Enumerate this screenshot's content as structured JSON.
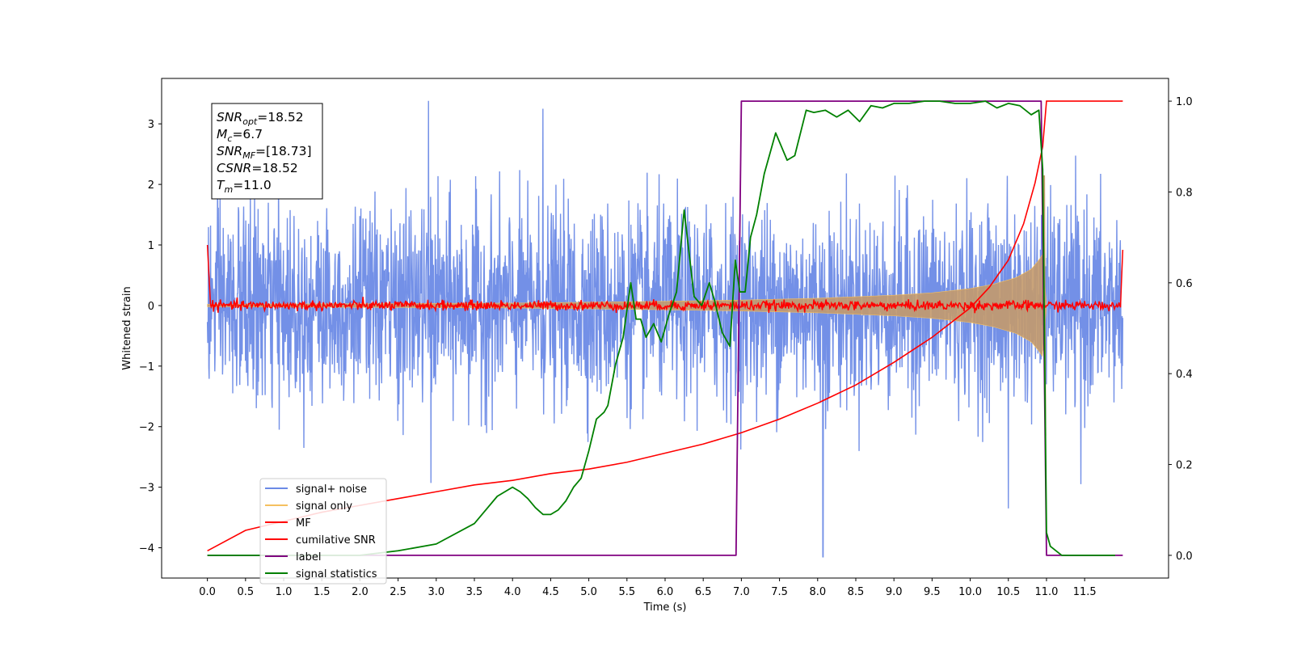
{
  "chart_data": {
    "type": "line",
    "xlabel": "Time (s)",
    "ylabel_left": "Whitened strain",
    "ylabel_right": "",
    "xlim": [
      -0.6,
      12.6
    ],
    "ylim_left": [
      -4.5,
      3.75
    ],
    "ylim_right": [
      -0.05,
      1.05
    ],
    "x_ticks": [
      0.0,
      0.5,
      1.0,
      1.5,
      2.0,
      2.5,
      3.0,
      3.5,
      4.0,
      4.5,
      5.0,
      5.5,
      6.0,
      6.5,
      7.0,
      7.5,
      8.0,
      8.5,
      9.0,
      9.5,
      10.0,
      10.5,
      11.0,
      11.5
    ],
    "x_tick_labels": [
      "0.0",
      "0.5",
      "1.0",
      "1.5",
      "2.0",
      "2.5",
      "3.0",
      "3.5",
      "4.0",
      "4.5",
      "5.0",
      "5.5",
      "6.0",
      "6.5",
      "7.0",
      "7.5",
      "8.0",
      "8.5",
      "9.0",
      "9.5",
      "10.0",
      "10.5",
      "11.0",
      "11.5"
    ],
    "y_ticks_left": [
      -4,
      -3,
      -2,
      -1,
      0,
      1,
      2,
      3
    ],
    "y_tick_labels_left": [
      "−4",
      "−3",
      "−2",
      "−1",
      "0",
      "1",
      "2",
      "3"
    ],
    "y_ticks_right": [
      0.0,
      0.2,
      0.4,
      0.6,
      0.8,
      1.0
    ],
    "y_tick_labels_right": [
      "0.0",
      "0.2",
      "0.4",
      "0.6",
      "0.8",
      "1.0"
    ],
    "grid": false,
    "legend_position": "lower-left",
    "colors": {
      "signal_noise": "#6b8ae6",
      "signal_only": "#f5c060",
      "signal_fill": "#c49a6c",
      "mf": "#ff0000",
      "cumulative_snr": "#ff0000",
      "label": "#800080",
      "signal_statistics": "#008000"
    },
    "series": [
      {
        "name": "signal+ noise",
        "axis": "left",
        "description_range": [
          0.0,
          12.0
        ],
        "approx_envelope": [
          -2.0,
          2.0
        ],
        "notable_peaks": [
          [
            2.9,
            3.38
          ],
          [
            4.4,
            3.25
          ],
          [
            8.07,
            -4.15
          ],
          [
            10.5,
            -3.35
          ],
          [
            2.93,
            -2.93
          ],
          [
            11.45,
            -2.95
          ]
        ]
      },
      {
        "name": "signal only",
        "axis": "left",
        "chirp_start": 0.0,
        "chirp_end": 11.0,
        "envelope_points": [
          [
            0.0,
            0.02
          ],
          [
            2.0,
            0.03
          ],
          [
            4.0,
            0.04
          ],
          [
            6.0,
            0.07
          ],
          [
            7.0,
            0.09
          ],
          [
            8.0,
            0.12
          ],
          [
            9.0,
            0.17
          ],
          [
            9.5,
            0.21
          ],
          [
            10.0,
            0.28
          ],
          [
            10.3,
            0.35
          ],
          [
            10.6,
            0.46
          ],
          [
            10.8,
            0.6
          ],
          [
            10.9,
            0.75
          ],
          [
            10.95,
            0.85
          ],
          [
            11.0,
            0.0
          ]
        ]
      },
      {
        "name": "MF",
        "axis": "left",
        "start_value": 1.0,
        "baseline": 0.0,
        "end_value": 0.92,
        "noise_amplitude": 0.08
      },
      {
        "name": "cumilative SNR",
        "axis": "right",
        "x": [
          0.0,
          0.5,
          1.0,
          1.5,
          2.0,
          2.5,
          3.0,
          3.5,
          4.0,
          4.5,
          5.0,
          5.5,
          6.0,
          6.5,
          7.0,
          7.5,
          8.0,
          8.5,
          9.0,
          9.5,
          10.0,
          10.25,
          10.5,
          10.7,
          10.85,
          10.95,
          11.0,
          12.0
        ],
        "values": [
          0.01,
          0.055,
          0.075,
          0.095,
          0.11,
          0.125,
          0.14,
          0.155,
          0.165,
          0.18,
          0.19,
          0.205,
          0.225,
          0.245,
          0.27,
          0.3,
          0.335,
          0.375,
          0.425,
          0.48,
          0.545,
          0.59,
          0.65,
          0.73,
          0.82,
          0.9,
          1.0,
          1.0
        ]
      },
      {
        "name": "label",
        "axis": "right",
        "x": [
          0.0,
          6.93,
          7.0,
          10.93,
          11.0,
          12.0
        ],
        "values": [
          0.0,
          0.0,
          1.0,
          1.0,
          0.0,
          0.0
        ]
      },
      {
        "name": "signal statistics",
        "axis": "right",
        "x": [
          0.0,
          1.0,
          2.0,
          2.5,
          3.0,
          3.5,
          3.8,
          4.0,
          4.1,
          4.2,
          4.3,
          4.4,
          4.5,
          4.6,
          4.7,
          4.8,
          4.9,
          5.0,
          5.1,
          5.2,
          5.25,
          5.35,
          5.45,
          5.55,
          5.62,
          5.68,
          5.75,
          5.85,
          5.95,
          6.05,
          6.15,
          6.25,
          6.38,
          6.48,
          6.58,
          6.65,
          6.75,
          6.85,
          6.92,
          6.98,
          7.05,
          7.12,
          7.2,
          7.3,
          7.45,
          7.6,
          7.7,
          7.85,
          7.95,
          8.1,
          8.25,
          8.4,
          8.55,
          8.7,
          8.85,
          9.0,
          9.2,
          9.4,
          9.6,
          9.8,
          10.0,
          10.2,
          10.35,
          10.5,
          10.65,
          10.8,
          10.9,
          10.95,
          11.0,
          11.05,
          11.2,
          11.5,
          11.9
        ],
        "values": [
          0.0,
          0.0,
          0.0,
          0.01,
          0.025,
          0.07,
          0.13,
          0.15,
          0.14,
          0.125,
          0.105,
          0.09,
          0.09,
          0.1,
          0.12,
          0.15,
          0.17,
          0.23,
          0.3,
          0.315,
          0.33,
          0.42,
          0.48,
          0.6,
          0.52,
          0.52,
          0.48,
          0.51,
          0.47,
          0.53,
          0.58,
          0.76,
          0.57,
          0.55,
          0.6,
          0.56,
          0.49,
          0.46,
          0.65,
          0.58,
          0.58,
          0.7,
          0.75,
          0.84,
          0.93,
          0.87,
          0.88,
          0.98,
          0.975,
          0.98,
          0.965,
          0.98,
          0.955,
          0.99,
          0.985,
          0.995,
          0.995,
          1.0,
          1.0,
          0.995,
          0.995,
          1.0,
          0.985,
          0.995,
          0.99,
          0.97,
          0.98,
          0.85,
          0.05,
          0.02,
          0.0,
          0.0,
          0.0
        ]
      }
    ],
    "info_box": {
      "lines": [
        {
          "label": "SNR",
          "sub": "opt",
          "value": "=18.52"
        },
        {
          "label": "M",
          "sub": "c",
          "value": "=6.7"
        },
        {
          "label": "SNR",
          "sub": "MF",
          "value": "=[18.73]"
        },
        {
          "label": "CSNR",
          "sub": "",
          "value": "=18.52"
        },
        {
          "label": "T",
          "sub": "m",
          "value": "=11.0"
        }
      ]
    },
    "legend": [
      "signal+ noise",
      "signal only",
      "MF",
      "cumilative SNR",
      "label",
      "signal statistics"
    ]
  }
}
